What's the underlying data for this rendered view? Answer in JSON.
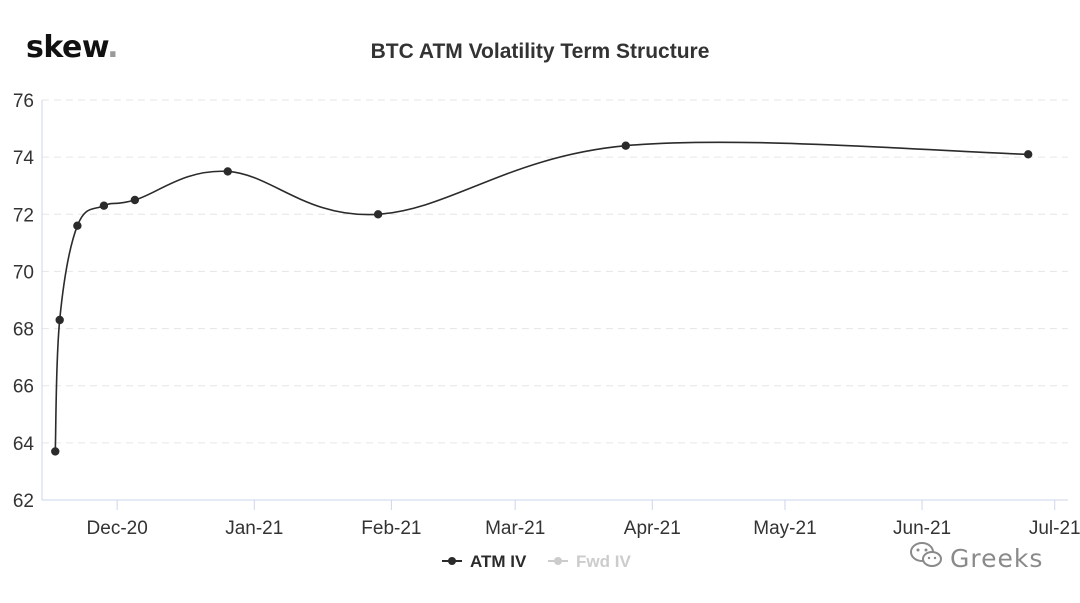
{
  "brand": {
    "logo_text": "skew",
    "logo_dot": "."
  },
  "watermark": {
    "text": "Greeks",
    "icon": "wechat-icon"
  },
  "colors": {
    "series": "#2b2b2b",
    "series_inactive": "#cccccc",
    "grid": "#e6e6e6",
    "axis": "#ccd6eb"
  },
  "chart_data": {
    "type": "line",
    "title": "BTC ATM Volatility Term Structure",
    "xlabel": "",
    "ylabel": "",
    "x_axis": "date",
    "xlim": [
      "2020-11-14",
      "2021-07-04"
    ],
    "ylim": [
      62,
      76
    ],
    "yticks": [
      62,
      64,
      66,
      68,
      70,
      72,
      74,
      76
    ],
    "xticks": [
      {
        "label": "Dec-20",
        "date": "2020-12-01"
      },
      {
        "label": "Jan-21",
        "date": "2021-01-01"
      },
      {
        "label": "Feb-21",
        "date": "2021-02-01"
      },
      {
        "label": "Mar-21",
        "date": "2021-03-01"
      },
      {
        "label": "Apr-21",
        "date": "2021-04-01"
      },
      {
        "label": "May-21",
        "date": "2021-05-01"
      },
      {
        "label": "Jun-21",
        "date": "2021-06-01"
      },
      {
        "label": "Jul-21",
        "date": "2021-07-01"
      }
    ],
    "grid": true,
    "legend_position": "bottom-center",
    "series": [
      {
        "name": "ATM IV",
        "active": true,
        "points": [
          {
            "date": "2020-11-17",
            "value": 63.7
          },
          {
            "date": "2020-11-18",
            "value": 68.3
          },
          {
            "date": "2020-11-22",
            "value": 71.6
          },
          {
            "date": "2020-11-28",
            "value": 72.3
          },
          {
            "date": "2020-12-05",
            "value": 72.5
          },
          {
            "date": "2020-12-26",
            "value": 73.5
          },
          {
            "date": "2021-01-29",
            "value": 72.0
          },
          {
            "date": "2021-03-26",
            "value": 74.4
          },
          {
            "date": "2021-06-25",
            "value": 74.1
          }
        ]
      },
      {
        "name": "Fwd IV",
        "active": false,
        "points": []
      }
    ]
  }
}
